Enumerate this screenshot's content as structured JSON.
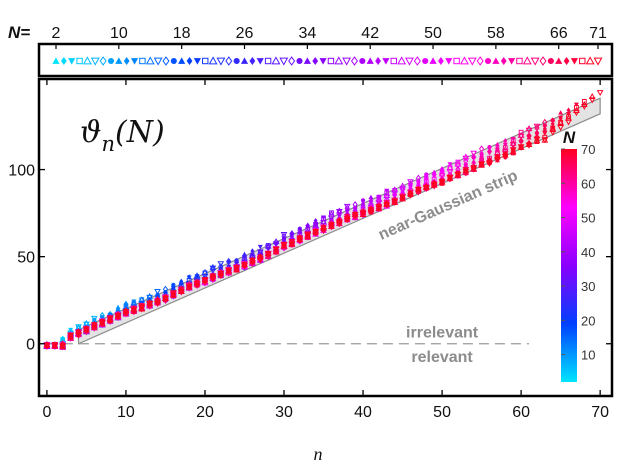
{
  "chart_data": {
    "type": "scatter",
    "title": "ϑn(N)",
    "title_symbol": "ϑ",
    "title_subscript": "n",
    "title_argument": "(N)",
    "xlabel": "n",
    "ylabel": "",
    "xlim": [
      -1,
      71.5
    ],
    "ylim": [
      -30,
      152
    ],
    "xticks": [
      0,
      10,
      20,
      30,
      40,
      50,
      60,
      70
    ],
    "yticks": [
      0,
      50,
      100
    ],
    "top_axis": {
      "label": "N=",
      "ticks": [
        2,
        10,
        18,
        26,
        34,
        42,
        50,
        58,
        66,
        71
      ],
      "marker_cycle": [
        "filled-triangle-up",
        "filled-diamond",
        "filled-triangle-down",
        "open-square",
        "open-triangle-up",
        "open-triangle-down",
        "open-diamond",
        "filled-circle"
      ]
    },
    "colorbar": {
      "label": "N",
      "range": [
        2,
        70
      ],
      "ticks": [
        10,
        20,
        30,
        40,
        50,
        60,
        70
      ],
      "colors": [
        "#00e5ff",
        "#0040ff",
        "#8a00ff",
        "#ff00ff",
        "#ff0020"
      ]
    },
    "reference_line": {
      "y": 0,
      "style": "dashed",
      "x_range": [
        0,
        61
      ]
    },
    "strip": {
      "label": "near-Gaussian strip",
      "lower": [
        [
          4,
          0
        ],
        [
          70,
          132
        ]
      ],
      "upper": [
        [
          4,
          8
        ],
        [
          70,
          141
        ]
      ]
    },
    "annotations": [
      {
        "text": "irrelevant",
        "x": 50,
        "y": 7
      },
      {
        "text": "relevant",
        "x": 50,
        "y": -7
      }
    ],
    "series_description": "One marker series per N = 2..71; points θn for n = 0..N-1; colour by N, marker shape cycling every 8 values of N",
    "trend": [
      [
        0,
        -1
      ],
      [
        2,
        -1
      ],
      [
        3,
        4
      ],
      [
        5,
        8
      ],
      [
        8,
        14
      ],
      [
        10,
        18
      ],
      [
        12,
        21
      ],
      [
        15,
        26
      ],
      [
        18,
        33
      ],
      [
        20,
        36
      ],
      [
        22,
        40
      ],
      [
        25,
        45
      ],
      [
        28,
        51
      ],
      [
        30,
        56
      ],
      [
        33,
        62
      ],
      [
        35,
        66
      ],
      [
        38,
        72
      ],
      [
        40,
        75
      ],
      [
        43,
        80
      ],
      [
        45,
        84
      ],
      [
        48,
        90
      ],
      [
        50,
        93
      ],
      [
        53,
        99
      ],
      [
        55,
        103
      ],
      [
        58,
        108
      ],
      [
        60,
        113
      ],
      [
        63,
        118
      ],
      [
        65,
        123
      ],
      [
        68,
        130
      ],
      [
        70,
        136
      ]
    ]
  }
}
